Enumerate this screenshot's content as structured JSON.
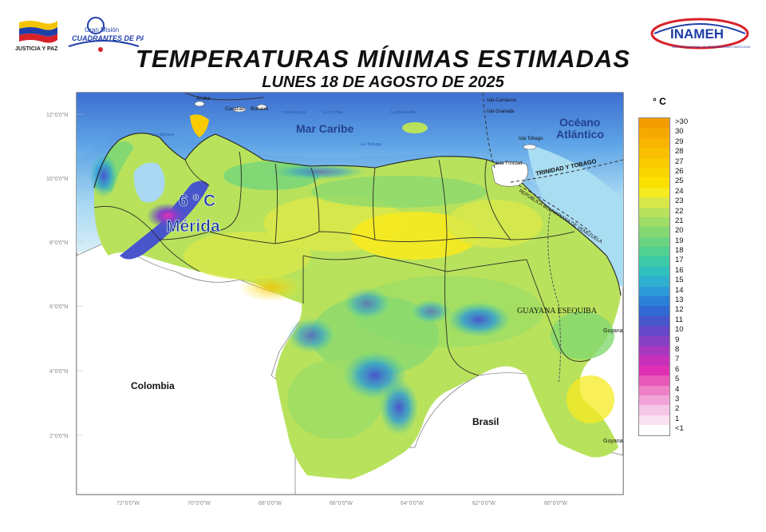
{
  "header": {
    "title": "TEMPERATURAS MÍNIMAS ESTIMADAS",
    "date": "LUNES 18 DE AGOSTO DE 2025",
    "logo_left_text": "JUSTICIA Y PAZ",
    "logo_mid_line1": "Gran Misión",
    "logo_mid_line2": "CUADRANTES DE PAZ",
    "logo_right_text": "INAMEH",
    "logo_right_sub": "INSTITUTO NACIONAL DE METEOROLOGÍA E HIDROLOGÍA"
  },
  "map": {
    "highlight": {
      "value": "6 º C",
      "place": "Mérida"
    },
    "labels": {
      "sea": "Mar Caribe",
      "ocean_line1": "Océano",
      "ocean_line2": "Atlántico",
      "colombia": "Colombia",
      "brasil": "Brasil",
      "guayana": "GUAYANA ESEQUIBA",
      "guyana_top": "Guyana",
      "guyana_bottom": "Guyana",
      "trinidad_border": "TRINIDAD Y TOBAGO",
      "ven_border": "REPÚBLICA BOLIVARIANA DE VENEZUELA",
      "aruba": "Aruba",
      "curazao": "Curazao",
      "bonaire": "Bonaire",
      "carriacou": "Isla Carriacou",
      "granada": "Isla Granada",
      "tobago": "Isla Tobago",
      "trinidad": "Isla Trinidad",
      "tortuga": "La Tortuga",
      "los_roques": "Los Roques",
      "blanquilla": "La Blanquilla",
      "orchila": "La Orchila",
      "los_monjes": "Los Monjes"
    },
    "lat_ticks": [
      "12°0'0\"N",
      "10°0'0\"N",
      "8°0'0\"N",
      "6°0'0\"N",
      "4°0'0\"N",
      "2°0'0\"N"
    ],
    "lon_ticks": [
      "72°0'0\"W",
      "70°0'0\"W",
      "68°0'0\"W",
      "66°0'0\"W",
      "64°0'0\"W",
      "62°0'0\"W",
      "60°0'0\"W"
    ]
  },
  "legend": {
    "title": "° C",
    "labels": [
      ">30",
      "30",
      "29",
      "28",
      "27",
      "26",
      "25",
      "24",
      "23",
      "22",
      "21",
      "20",
      "19",
      "18",
      "17",
      "16",
      "15",
      "14",
      "13",
      "12",
      "11",
      "10",
      "9",
      "8",
      "7",
      "6",
      "5",
      "4",
      "3",
      "2",
      "1",
      "<1"
    ],
    "colors": [
      "#f39c00",
      "#f5a800",
      "#f7b400",
      "#f8c000",
      "#f9cb00",
      "#fad500",
      "#fbe100",
      "#f7ea20",
      "#d8e84a",
      "#b9e25c",
      "#9edd66",
      "#84d872",
      "#6ad480",
      "#50d092",
      "#3ccaa8",
      "#32bfc0",
      "#2fb0cf",
      "#2c9ad8",
      "#2a7fd8",
      "#3068d4",
      "#4856cc",
      "#6648c8",
      "#8840c4",
      "#a838c0",
      "#c830bc",
      "#e030b4",
      "#e858b8",
      "#ee80c8",
      "#f2a4d8",
      "#f6c6e6",
      "#fae2f2",
      "#ffffff"
    ]
  }
}
